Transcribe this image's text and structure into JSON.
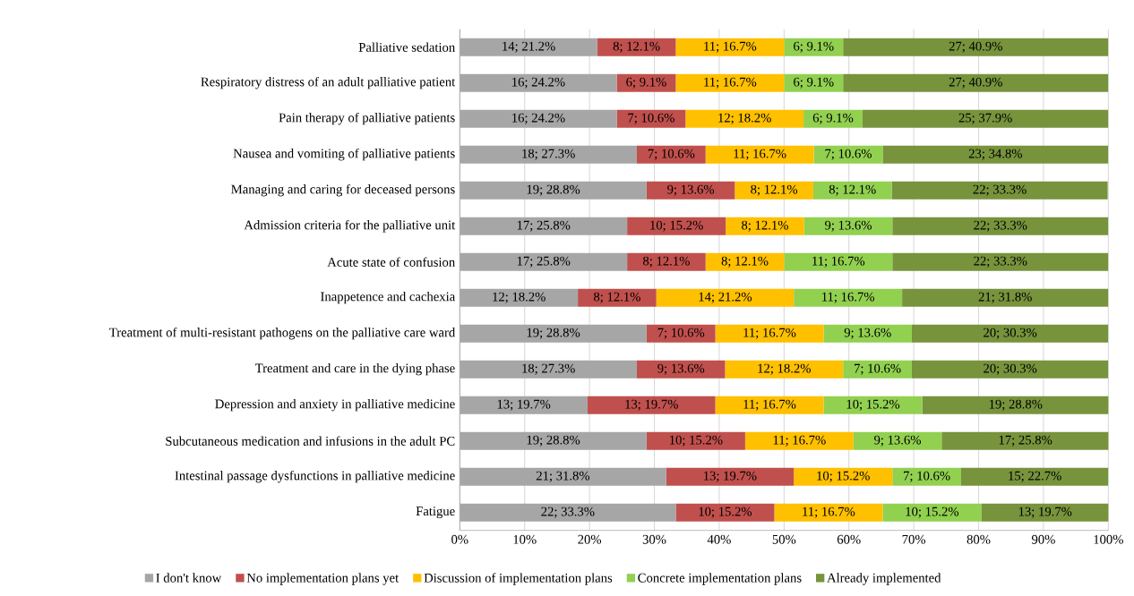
{
  "chart_data": {
    "type": "bar",
    "orientation": "horizontal",
    "stacked": true,
    "categories": [
      "Palliative sedation",
      "Respiratory distress of an adult palliative patient",
      "Pain therapy of palliative patients",
      "Nausea and vomiting of palliative patients",
      "Managing and caring for deceased persons",
      "Admission criteria for the palliative unit",
      "Acute state of confusion",
      "Inappetence and cachexia",
      "Treatment of multi-resistant pathogens on the palliative care ward",
      "Treatment and care in the dying phase",
      "Depression and anxiety in palliative medicine",
      "Subcutaneous medication and infusions in the adult PC",
      "Intestinal passage dysfunctions in palliative medicine",
      "Fatigue"
    ],
    "series": [
      {
        "name": "I don't know",
        "color": "#a6a6a6",
        "values": [
          21.2,
          24.2,
          24.2,
          27.3,
          28.8,
          25.8,
          25.8,
          18.2,
          28.8,
          27.3,
          19.7,
          28.8,
          31.8,
          33.3
        ],
        "value_labels": [
          "14; 21.2%",
          "16; 24.2%",
          "16; 24.2%",
          "18; 27.3%",
          "19; 28.8%",
          "17; 25.8%",
          "17; 25.8%",
          "12; 18.2%",
          "19; 28.8%",
          "18; 27.3%",
          "13; 19.7%",
          "19; 28.8%",
          "21; 31.8%",
          "22; 33.3%"
        ]
      },
      {
        "name": "No implementation plans yet",
        "color": "#c0504d",
        "values": [
          12.1,
          9.1,
          10.6,
          10.6,
          13.6,
          15.2,
          12.1,
          12.1,
          10.6,
          13.6,
          19.7,
          15.2,
          19.7,
          15.2
        ],
        "value_labels": [
          "8; 12.1%",
          "6; 9.1%",
          "7; 10.6%",
          "7; 10.6%",
          "9; 13.6%",
          "10; 15.2%",
          "8; 12.1%",
          "8; 12.1%",
          "7; 10.6%",
          "9; 13.6%",
          "13; 19.7%",
          "10; 15.2%",
          "13; 19.7%",
          "10; 15.2%"
        ]
      },
      {
        "name": "Discussion of implementation plans",
        "color": "#ffc000",
        "values": [
          16.7,
          16.7,
          18.2,
          16.7,
          12.1,
          12.1,
          12.1,
          21.2,
          16.7,
          18.2,
          16.7,
          16.7,
          15.2,
          16.7
        ],
        "value_labels": [
          "11; 16.7%",
          "11; 16.7%",
          "12; 18.2%",
          "11; 16.7%",
          "8; 12.1%",
          "8; 12.1%",
          "8; 12.1%",
          "14; 21.2%",
          "11; 16.7%",
          "12; 18.2%",
          "11; 16.7%",
          "11; 16.7%",
          "10; 15.2%",
          "11; 16.7%"
        ]
      },
      {
        "name": "Concrete implementation plans",
        "color": "#92d050",
        "values": [
          9.1,
          9.1,
          9.1,
          10.6,
          12.1,
          13.6,
          16.7,
          16.7,
          13.6,
          10.6,
          15.2,
          13.6,
          10.6,
          15.2
        ],
        "value_labels": [
          "6; 9.1%",
          "6; 9.1%",
          "6; 9.1%",
          "7; 10.6%",
          "8; 12.1%",
          "9; 13.6%",
          "11; 16.7%",
          "11; 16.7%",
          "9; 13.6%",
          "7; 10.6%",
          "10; 15.2%",
          "9; 13.6%",
          "7; 10.6%",
          "10; 15.2%"
        ]
      },
      {
        "name": "Already implemented",
        "color": "#77933c",
        "values": [
          40.9,
          40.9,
          37.9,
          34.8,
          33.3,
          33.3,
          33.3,
          31.8,
          30.3,
          30.3,
          28.8,
          25.8,
          22.7,
          19.7
        ],
        "value_labels": [
          "27; 40.9%",
          "27; 40.9%",
          "25; 37.9%",
          "23; 34.8%",
          "22; 33.3%",
          "22; 33.3%",
          "22; 33.3%",
          "21; 31.8%",
          "20; 30.3%",
          "20; 30.3%",
          "19; 28.8%",
          "17; 25.8%",
          "15; 22.7%",
          "13; 19.7%"
        ]
      }
    ],
    "xlim": [
      0,
      100
    ],
    "xticks": [
      {
        "value": 0,
        "label": "0%"
      },
      {
        "value": 10,
        "label": "10%"
      },
      {
        "value": 20,
        "label": "20%"
      },
      {
        "value": 30,
        "label": "30%"
      },
      {
        "value": 40,
        "label": "40%"
      },
      {
        "value": 50,
        "label": "50%"
      },
      {
        "value": 60,
        "label": "60%"
      },
      {
        "value": 70,
        "label": "70%"
      },
      {
        "value": 80,
        "label": "80%"
      },
      {
        "value": 90,
        "label": "90%"
      },
      {
        "value": 100,
        "label": "100%"
      }
    ],
    "grid": "x",
    "legend": "bottom"
  }
}
